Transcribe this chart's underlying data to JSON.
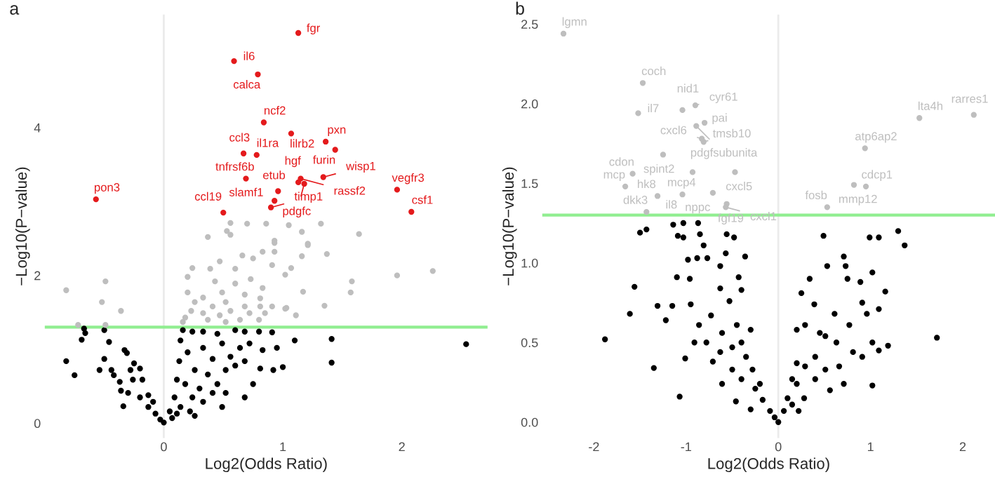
{
  "chart_data": [
    {
      "type": "scatter",
      "title": "a",
      "xlabel": "Log2(Odds Ratio)",
      "ylabel": "−Log10(P−value)",
      "xlim": [
        -1.0,
        2.72
      ],
      "ylim": [
        -0.2,
        5.53
      ],
      "xticks": [
        0,
        1,
        2
      ],
      "yticks": [
        0,
        2,
        4
      ],
      "grid": false,
      "legend": false,
      "marker": "circle",
      "ref_lines": [
        {
          "axis": "x",
          "value": 0,
          "color": "#ebebeb"
        },
        {
          "axis": "y",
          "value": 1.3,
          "color": "#90ee90"
        }
      ],
      "series": [
        {
          "color": "#000000",
          "x": [
            -0.82,
            -0.75,
            -0.69,
            -0.66,
            -0.67,
            -0.5,
            -0.46,
            -0.5,
            -0.54,
            -0.44,
            -0.42,
            -0.33,
            -0.31,
            -0.36,
            -0.34,
            -0.25,
            -0.2,
            -0.26,
            -0.18,
            -0.3,
            -0.2,
            -0.13,
            -0.07,
            -0.03,
            -0.37,
            -0.28,
            -0.13,
            -0.09,
            0,
            0.05,
            0.09,
            0.11,
            0.13,
            0.14,
            0.16,
            0.24,
            0.33,
            0.45,
            0.6,
            0.68,
            0.8,
            0.91,
            0.2,
            0.26,
            0.33,
            0.41,
            0.49,
            0.56,
            0.64,
            0.72,
            0.3,
            0.37,
            0.45,
            0.52,
            0.6,
            0.68,
            0.18,
            0.24,
            0.33,
            0.41,
            0.14,
            0.11,
            0.22,
            0.07,
            0.68,
            0.83,
            0.95,
            1.0,
            0.92,
            1.1,
            1.41,
            1.41,
            2.54,
            0.81,
            0.75,
            0.52,
            0.49,
            0.26
          ],
          "values": [
            0.84,
            0.65,
            1.13,
            1.22,
            1.28,
            1.26,
            1.1,
            0.87,
            0.72,
            0.72,
            0.65,
            0.99,
            0.95,
            0.44,
            0.23,
            0.81,
            0.74,
            0.59,
            0.59,
            0.41,
            0.35,
            0.22,
            0.13,
            0.05,
            0.56,
            0.72,
            0.38,
            0.29,
            0.01,
            0.16,
            0.35,
            0.59,
            0.84,
            1.12,
            1.26,
            1.24,
            1.24,
            1.21,
            1.26,
            1.24,
            1.24,
            1.23,
            0.96,
            0.72,
            1.02,
            0.87,
            1.08,
            0.9,
            1.02,
            1.08,
            0.47,
            0.66,
            0.53,
            0.72,
            0.78,
            0.84,
            0.53,
            0.35,
            0.29,
            0.41,
            0.22,
            0.13,
            0.16,
            0.07,
            0.35,
            0.99,
            1.02,
            0.76,
            0.72,
            1.12,
            1.14,
            0.82,
            1.07,
            0.74,
            0.53,
            0.41,
            0.22,
            0.1
          ]
        },
        {
          "color": "#bebebe",
          "x": [
            0.56,
            0.7,
            0.86,
            1.05,
            1.16,
            1.32,
            0.37,
            0.53,
            0.56,
            0.93,
            1.21,
            1.64,
            -0.82,
            -0.49,
            -0.52,
            -0.36,
            -0.72,
            -0.49,
            1.58,
            1.57,
            1.96,
            2.26,
            1.35,
            1.17,
            1.11,
            1.03,
            0.2,
            0.24,
            0.39,
            0.47,
            0.6,
            0.66,
            0.75,
            0.83,
            0.93,
            0.91,
            1.02,
            1.07,
            1.16,
            1.21,
            1.37,
            0.93,
            0.2,
            0.26,
            0.33,
            0.43,
            0.52,
            0.6,
            0.68,
            0.73,
            0.81,
            0.83,
            0.91,
            0.18,
            0.23,
            0.33,
            0.41,
            0.47,
            0.56,
            0.64,
            0.72,
            0.8,
            0.85,
            0.52,
            0.37,
            0.16,
            1.02,
            0.68,
            0.49,
            0.81
          ],
          "values": [
            2.71,
            2.7,
            2.7,
            2.68,
            2.59,
            2.7,
            2.52,
            2.6,
            2.55,
            2.44,
            2.43,
            2.56,
            1.8,
            1.92,
            1.64,
            1.52,
            1.33,
            1.33,
            1.92,
            1.77,
            2.0,
            2.06,
            1.59,
            1.78,
            1.46,
            1.56,
            1.98,
            2.1,
            2.09,
            2.19,
            2.09,
            2.27,
            2.23,
            2.32,
            2.32,
            2.14,
            2.01,
            2.1,
            2.26,
            2.41,
            2.29,
            2.47,
            1.77,
            1.64,
            1.7,
            1.92,
            1.64,
            1.89,
            1.74,
            1.95,
            1.69,
            1.83,
            1.58,
            1.43,
            1.52,
            1.49,
            1.58,
            1.46,
            1.52,
            1.4,
            1.49,
            1.4,
            1.49,
            1.37,
            1.4,
            1.37,
            1.55,
            1.58,
            1.77,
            1.58
          ]
        },
        {
          "color": "#e41a1c",
          "x": [
            1.13,
            0.59,
            0.79,
            0.84,
            0.78,
            0.96,
            0.93,
            0.9,
            1.07,
            1.36,
            1.44,
            1.13,
            1.18,
            1.15,
            1.34,
            0.67,
            0.69,
            0.5,
            -0.57,
            1.96,
            2.08
          ],
          "values": [
            5.28,
            4.9,
            4.72,
            4.07,
            3.63,
            3.14,
            3.01,
            2.92,
            3.92,
            3.81,
            3.7,
            3.26,
            3.24,
            3.31,
            3.33,
            3.65,
            3.31,
            2.85,
            3.03,
            3.16,
            2.86
          ]
        }
      ],
      "annotations": [
        {
          "text": "fgr",
          "x": 1.13,
          "y": 5.28
        },
        {
          "text": "il6",
          "x": 0.59,
          "y": 4.9
        },
        {
          "text": "calca",
          "x": 0.79,
          "y": 4.72
        },
        {
          "text": "ncf2",
          "x": 0.84,
          "y": 4.07
        },
        {
          "text": "il1ra",
          "x": 0.78,
          "y": 3.63
        },
        {
          "text": "etub",
          "x": 0.96,
          "y": 3.14
        },
        {
          "text": "slamf1",
          "x": 0.93,
          "y": 3.01
        },
        {
          "text": "timp1",
          "x": 0.9,
          "y": 2.92
        },
        {
          "text": "lilrb2",
          "x": 1.07,
          "y": 3.92
        },
        {
          "text": "pxn",
          "x": 1.36,
          "y": 3.81
        },
        {
          "text": "furin",
          "x": 1.44,
          "y": 3.7
        },
        {
          "text": "hgf",
          "x": 1.13,
          "y": 3.26
        },
        {
          "text": "pdgfc",
          "x": 1.18,
          "y": 3.24
        },
        {
          "text": "rassf2",
          "x": 1.15,
          "y": 3.31
        },
        {
          "text": "wisp1",
          "x": 1.34,
          "y": 3.33
        },
        {
          "text": "ccl3",
          "x": 0.67,
          "y": 3.65
        },
        {
          "text": "tnfrsf6b",
          "x": 0.69,
          "y": 3.31
        },
        {
          "text": "ccl19",
          "x": 0.5,
          "y": 2.85
        },
        {
          "text": "pon3",
          "x": -0.57,
          "y": 3.03
        },
        {
          "text": "vegfr3",
          "x": 1.96,
          "y": 3.16
        },
        {
          "text": "csf1",
          "x": 2.08,
          "y": 2.86
        }
      ]
    },
    {
      "type": "scatter",
      "title": "b",
      "xlabel": "Log2(Odds Ratio)",
      "ylabel": "−Log10(P−value)",
      "xlim": [
        -2.56,
        2.35
      ],
      "ylim": [
        -0.1,
        2.56
      ],
      "xticks": [
        -2,
        -1,
        0,
        1,
        2
      ],
      "yticks": [
        {
          "value": 0,
          "label": "0.0"
        },
        {
          "value": 0.5,
          "label": "0.5"
        },
        {
          "value": 1,
          "label": "1.0"
        },
        {
          "value": 1.5,
          "label": "1.5"
        },
        {
          "value": 2,
          "label": "2.0"
        },
        {
          "value": 2.5,
          "label": "2.5"
        }
      ],
      "grid": false,
      "legend": false,
      "marker": "circle",
      "ref_lines": [
        {
          "axis": "x",
          "value": 0,
          "color": "#ebebeb"
        },
        {
          "axis": "y",
          "value": 1.3,
          "color": "#90ee90"
        }
      ],
      "series": [
        {
          "color": "#000000",
          "x": [
            -1.5,
            -1.43,
            -1.14,
            -1.03,
            -0.87,
            -1.09,
            -1.03,
            -0.85,
            -0.81,
            -0.56,
            -0.48,
            0.49,
            0.99,
            1.09,
            1.3,
            1.37,
            -1.88,
            -1.61,
            -1.56,
            -1.35,
            -1.07,
            -1.31,
            -1.22,
            -1.15,
            -1.1,
            -0.98,
            -0.95,
            -0.96,
            -0.88,
            -0.77,
            -0.63,
            -0.57,
            -0.36,
            -0.43,
            -0.4,
            -0.63,
            -1.01,
            -0.86,
            -0.78,
            -0.71,
            -0.61,
            -0.53,
            -0.45,
            -0.4,
            -0.35,
            -0.3,
            -0.5,
            -0.61,
            -0.4,
            -0.28,
            -0.25,
            -0.17,
            -0.09,
            -0.04,
            -0.46,
            -0.3,
            -0.2,
            -0.91,
            -0.73,
            -0.5,
            -0.63,
            0,
            0.06,
            0.1,
            0.15,
            0.2,
            0.2,
            0.25,
            0.34,
            0.53,
            0.71,
            0.73,
            0.75,
            0.89,
            0.91,
            1.02,
            1.16,
            1.09,
            0.96,
            0.77,
            0.51,
            0.63,
            0.81,
            0.91,
            1.02,
            1.19,
            1.09,
            1.72,
            1.02,
            0.71,
            0.56,
            0.29,
            0.4,
            0.51,
            0.2,
            0.28,
            0.4,
            0.66,
            0.45,
            0.61,
            0.29,
            0.15,
            0.22,
            0.39
          ],
          "values": [
            1.19,
            1.21,
            1.24,
            1.25,
            1.25,
            1.17,
            1.16,
            1.18,
            1.11,
            1.18,
            1.16,
            1.17,
            1.16,
            1.16,
            1.2,
            1.11,
            0.52,
            0.68,
            0.85,
            0.34,
            0.16,
            0.73,
            0.64,
            0.73,
            0.91,
            1.02,
            0.74,
            0.9,
            1.03,
            1.03,
            0.98,
            1.06,
            1.04,
            0.91,
            0.83,
            0.84,
            0.4,
            0.61,
            0.5,
            0.38,
            0.56,
            0.76,
            0.61,
            0.5,
            0.41,
            0.58,
            0.33,
            0.24,
            0.27,
            0.33,
            0.21,
            0.14,
            0.07,
            0.03,
            0.13,
            0.08,
            0.24,
            0.5,
            0.67,
            0.47,
            0.44,
            0.0,
            0.07,
            0.15,
            0.27,
            0.37,
            0.58,
            0.81,
            0.9,
            0.98,
            1.04,
            0.98,
            0.9,
            0.88,
            0.75,
            0.94,
            0.82,
            0.71,
            0.68,
            0.61,
            0.54,
            0.5,
            0.44,
            0.41,
            0.5,
            0.48,
            0.45,
            0.53,
            0.23,
            0.24,
            0.2,
            0.35,
            0.41,
            0.33,
            0.24,
            0.15,
            0.27,
            0.35,
            0.56,
            0.68,
            0.61,
            0.11,
            0.07,
            0.74
          ]
        },
        {
          "color": "#bebebe",
          "x": [
            -2.33,
            -1.47,
            -1.52,
            -1.04,
            -0.9,
            -0.8,
            -0.89,
            -0.83,
            -0.81,
            -1.25,
            -0.93,
            -1.58,
            -1.66,
            -0.47,
            -0.71,
            -1.31,
            -1.04,
            -0.56,
            -0.57,
            -1.43,
            1.53,
            2.12,
            0.94,
            0.95,
            0.82,
            0.53
          ],
          "values": [
            2.44,
            2.13,
            1.94,
            1.96,
            1.99,
            1.88,
            1.86,
            1.78,
            1.76,
            1.68,
            1.57,
            1.56,
            1.48,
            1.57,
            1.44,
            1.42,
            1.43,
            1.37,
            1.35,
            1.32,
            1.91,
            1.93,
            1.72,
            1.48,
            1.49,
            1.35
          ]
        }
      ],
      "annotations": [
        {
          "text": "lgmn",
          "x": -2.33,
          "y": 2.44
        },
        {
          "text": "coch",
          "x": -1.47,
          "y": 2.13
        },
        {
          "text": "il7",
          "x": -1.52,
          "y": 1.94
        },
        {
          "text": "nid1",
          "x": -1.04,
          "y": 1.96
        },
        {
          "text": "cyr61",
          "x": -0.9,
          "y": 1.99
        },
        {
          "text": "pai",
          "x": -0.8,
          "y": 1.88
        },
        {
          "text": "pdgfsubunita",
          "x": -0.89,
          "y": 1.86
        },
        {
          "text": "cxcl6",
          "x": -0.83,
          "y": 1.78
        },
        {
          "text": "tmsb10",
          "x": -0.81,
          "y": 1.76
        },
        {
          "text": "spint2",
          "x": -1.25,
          "y": 1.68
        },
        {
          "text": "mcp4",
          "x": -0.93,
          "y": 1.57
        },
        {
          "text": "cdon",
          "x": -1.58,
          "y": 1.56
        },
        {
          "text": "mcp",
          "x": -1.66,
          "y": 1.48
        },
        {
          "text": "cxcl5",
          "x": -0.47,
          "y": 1.57
        },
        {
          "text": "nppc",
          "x": -0.71,
          "y": 1.44
        },
        {
          "text": "hk8",
          "x": -1.31,
          "y": 1.42
        },
        {
          "text": "il8",
          "x": -1.04,
          "y": 1.43
        },
        {
          "text": "fgf19",
          "x": -0.56,
          "y": 1.37
        },
        {
          "text": "cxcl1",
          "x": -0.57,
          "y": 1.35
        },
        {
          "text": "dkk3",
          "x": -1.43,
          "y": 1.32
        },
        {
          "text": "lta4h",
          "x": 1.53,
          "y": 1.91
        },
        {
          "text": "rarres1",
          "x": 2.12,
          "y": 1.93
        },
        {
          "text": "atp6ap2",
          "x": 0.94,
          "y": 1.72
        },
        {
          "text": "cdcp1",
          "x": 0.95,
          "y": 1.48
        },
        {
          "text": "mmp12",
          "x": 0.82,
          "y": 1.49
        },
        {
          "text": "fosb",
          "x": 0.53,
          "y": 1.35
        }
      ]
    }
  ]
}
